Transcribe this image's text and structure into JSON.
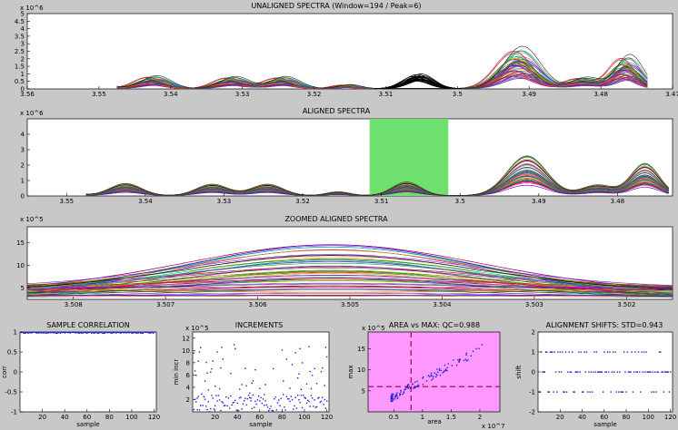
{
  "figure": {
    "background": "#c8c8c8"
  },
  "chart_data": [
    {
      "id": "unaligned",
      "type": "line",
      "title": "UNALIGNED SPECTRA (Window=194 / Peak=6)",
      "xlim": [
        3.56,
        3.47
      ],
      "x_reversed": true,
      "ylim": [
        0,
        5
      ],
      "y_exponent": "x 10^6",
      "xticks": [
        "3.56",
        "3.55",
        "3.54",
        "3.53",
        "3.52",
        "3.51",
        "3.5",
        "3.49",
        "3.48",
        "3.47"
      ],
      "yticks": [
        "0",
        "0.5",
        "1",
        "1.5",
        "2",
        "2.5",
        "3",
        "3.5",
        "4",
        "4.5",
        "5"
      ],
      "series_count": 60,
      "highlight_color": "#000000",
      "peaks": [
        {
          "center": 3.5525,
          "height": 1.05,
          "width": 0.0022
        },
        {
          "center": 3.5425,
          "height": 0.8,
          "width": 0.002
        },
        {
          "center": 3.5315,
          "height": 0.75,
          "width": 0.002
        },
        {
          "center": 3.5245,
          "height": 0.75,
          "width": 0.002
        },
        {
          "center": 3.5155,
          "height": 0.25,
          "width": 0.0015
        },
        {
          "center": 3.5055,
          "height": 1.1,
          "width": 0.0018,
          "highlighted": true
        },
        {
          "center": 3.4915,
          "height": 2.6,
          "width": 0.0025
        },
        {
          "center": 3.4825,
          "height": 0.7,
          "width": 0.002
        },
        {
          "center": 3.4765,
          "height": 2.1,
          "width": 0.0018
        }
      ]
    },
    {
      "id": "aligned",
      "type": "line",
      "title": "ALIGNED SPECTRA",
      "xlim": [
        3.555,
        3.473
      ],
      "x_reversed": true,
      "ylim": [
        0,
        5
      ],
      "y_exponent": "x 10^6",
      "xticks": [
        "3.55",
        "3.54",
        "3.53",
        "3.52",
        "3.51",
        "3.5",
        "3.49",
        "3.48"
      ],
      "yticks": [
        "0",
        "1",
        "2",
        "3",
        "4"
      ],
      "series_count": 60,
      "highlight_window": [
        3.5115,
        3.5015
      ],
      "highlight_color": "#6ee06e",
      "peaks": [
        {
          "center": 3.5525,
          "height": 1.05,
          "width": 0.0022
        },
        {
          "center": 3.5425,
          "height": 0.8,
          "width": 0.002
        },
        {
          "center": 3.5315,
          "height": 0.75,
          "width": 0.002
        },
        {
          "center": 3.5245,
          "height": 0.75,
          "width": 0.002
        },
        {
          "center": 3.5155,
          "height": 0.25,
          "width": 0.0015
        },
        {
          "center": 3.5068,
          "height": 0.9,
          "width": 0.0018
        },
        {
          "center": 3.4915,
          "height": 2.6,
          "width": 0.0025
        },
        {
          "center": 3.4825,
          "height": 0.7,
          "width": 0.002
        },
        {
          "center": 3.4765,
          "height": 2.1,
          "width": 0.0018
        }
      ]
    },
    {
      "id": "zoomed",
      "type": "line",
      "title": "ZOOMED ALIGNED SPECTRA",
      "xlim": [
        3.5085,
        3.5015
      ],
      "x_reversed": true,
      "ylim": [
        2.5,
        18.5
      ],
      "y_exponent": "x 10^5",
      "xticks": [
        "3.508",
        "3.507",
        "3.506",
        "3.505",
        "3.504",
        "3.503",
        "3.502"
      ],
      "yticks": [
        "5",
        "10",
        "15"
      ],
      "series_count": 60,
      "peak_center": 3.5052
    },
    {
      "id": "correlation",
      "type": "scatter",
      "title": "SAMPLE CORRELATION",
      "xlabel": "sample",
      "ylabel": "corr",
      "xlim": [
        0,
        122
      ],
      "ylim": [
        -1,
        1
      ],
      "xticks": [
        "20",
        "40",
        "60",
        "80",
        "100",
        "120"
      ],
      "yticks": [
        "-1",
        "-0.5",
        "0",
        "0.5",
        "1"
      ],
      "value_range": [
        0.97,
        1.0
      ],
      "n": 120
    },
    {
      "id": "increments",
      "type": "scatter",
      "title": "INCREMENTS",
      "xlabel": "sample",
      "ylabel": "min incr",
      "xlim": [
        0,
        122
      ],
      "ylim": [
        0,
        13
      ],
      "y_exponent": "x 10^5",
      "xticks": [
        "20",
        "40",
        "60",
        "80",
        "100",
        "120"
      ],
      "yticks": [
        "2",
        "4",
        "6",
        "8",
        "10",
        "12"
      ],
      "value_range": [
        0,
        11
      ],
      "n": 120
    },
    {
      "id": "area_vs_max",
      "type": "scatter",
      "title": "AREA vs MAX: QC=0.988",
      "xlabel": "area",
      "ylabel": "max",
      "xlim": [
        0.05,
        2.35
      ],
      "ylim": [
        0,
        19
      ],
      "x_exponent": "x 10^7",
      "y_exponent": "x 10^5",
      "xticks": [
        "0.5",
        "1",
        "1.5",
        "2"
      ],
      "yticks": [
        "5",
        "10",
        "15"
      ],
      "background": "#ff99ff",
      "median_x": 0.8,
      "median_y": 6.0,
      "n": 120
    },
    {
      "id": "shifts",
      "type": "scatter",
      "title": "ALIGNMENT SHIFTS: STD=0.943",
      "xlabel": "sample",
      "ylabel": "shift",
      "xlim": [
        0,
        122
      ],
      "ylim": [
        -2,
        2
      ],
      "xticks": [
        "20",
        "40",
        "60",
        "80",
        "100",
        "120"
      ],
      "yticks": [
        "-2",
        "-1",
        "0",
        "1",
        "2"
      ],
      "levels": [
        -1,
        0,
        1
      ],
      "n": 120
    }
  ]
}
